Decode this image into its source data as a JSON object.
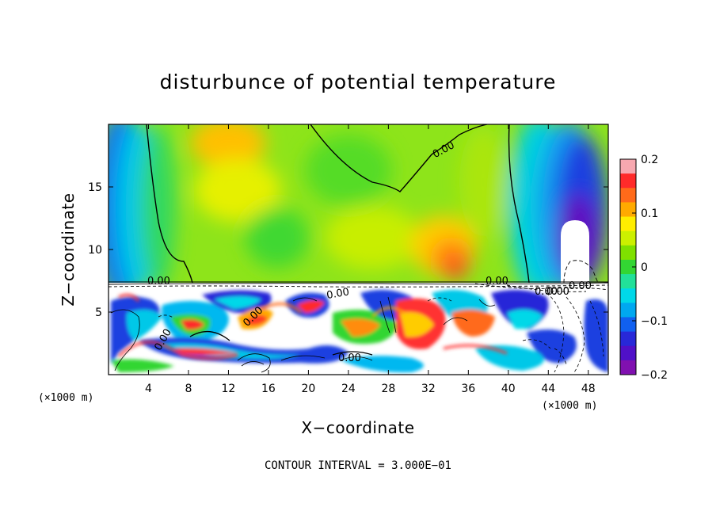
{
  "chart_data": {
    "type": "heatmap",
    "title": "disturbunce of potential temperature",
    "xlabel": "X−coordinate",
    "ylabel": "Z−coordinate",
    "x_unit": "(×1000 m)",
    "z_unit": "(×1000 m)",
    "x_ticks": [
      4,
      8,
      12,
      16,
      20,
      24,
      28,
      32,
      36,
      40,
      44,
      48
    ],
    "y_ticks": [
      5,
      10,
      15
    ],
    "xlim": [
      0,
      50
    ],
    "ylim": [
      0,
      20
    ],
    "colorbar": {
      "range": [
        -0.2,
        0.2
      ],
      "tick_values": [
        0.2,
        0.1,
        0,
        -0.1,
        -0.2
      ],
      "tick_labels": [
        "0.2",
        "0.1",
        "0",
        "−0.1",
        "−0.2"
      ],
      "colors": [
        "#f7a8b0",
        "#ff2a2a",
        "#ff6a1a",
        "#ffaa00",
        "#ffee00",
        "#ccf000",
        "#7fe000",
        "#33d633",
        "#22e099",
        "#00d8e8",
        "#00a8f0",
        "#1060f0",
        "#2828d8",
        "#5010c8",
        "#8010b0"
      ]
    },
    "contour_labels": [
      "0.00",
      "0.00",
      "0.00",
      "0.00",
      "0.00",
      "0.00",
      "0.00",
      "0.00",
      "0.00",
      "0.00"
    ],
    "note": "CONTOUR INTERVAL = 3.000E−01"
  }
}
